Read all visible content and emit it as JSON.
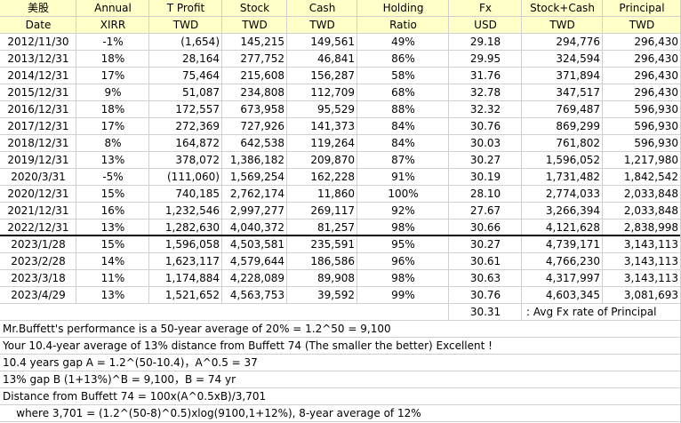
{
  "headers": {
    "row1": [
      "美股",
      "Annual",
      "T Profit",
      "Stock",
      "Cash",
      "Holding",
      "Fx",
      "Stock+Cash",
      "Principal"
    ],
    "row2": [
      "Date",
      "XIRR",
      "TWD",
      "TWD",
      "TWD",
      "Ratio",
      "USD",
      "TWD",
      "TWD"
    ]
  },
  "rows": [
    [
      "2012/11/30",
      "-1%",
      "(1,654)",
      "145,215",
      "149,561",
      "49%",
      "29.18",
      "294,776",
      "296,430"
    ],
    [
      "2013/12/31",
      "18%",
      "28,164",
      "277,752",
      "46,841",
      "86%",
      "29.95",
      "324,594",
      "296,430"
    ],
    [
      "2014/12/31",
      "17%",
      "75,464",
      "215,608",
      "156,287",
      "58%",
      "31.76",
      "371,894",
      "296,430"
    ],
    [
      "2015/12/31",
      "9%",
      "51,087",
      "234,808",
      "112,709",
      "68%",
      "32.78",
      "347,517",
      "296,430"
    ],
    [
      "2016/12/31",
      "18%",
      "172,557",
      "673,958",
      "95,529",
      "88%",
      "32.32",
      "769,487",
      "596,930"
    ],
    [
      "2017/12/31",
      "17%",
      "272,369",
      "727,926",
      "141,373",
      "84%",
      "30.76",
      "869,299",
      "596,930"
    ],
    [
      "2018/12/31",
      "8%",
      "164,872",
      "642,538",
      "119,264",
      "84%",
      "30.03",
      "761,802",
      "596,930"
    ],
    [
      "2019/12/31",
      "13%",
      "378,072",
      "1,386,182",
      "209,870",
      "87%",
      "30.27",
      "1,596,052",
      "1,217,980"
    ],
    [
      "2020/3/31",
      "-5%",
      "(111,060)",
      "1,569,254",
      "162,228",
      "91%",
      "30.19",
      "1,731,482",
      "1,842,542"
    ],
    [
      "2020/12/31",
      "15%",
      "740,185",
      "2,762,174",
      "11,860",
      "100%",
      "28.10",
      "2,774,033",
      "2,033,848"
    ],
    [
      "2021/12/31",
      "16%",
      "1,232,546",
      "2,997,277",
      "269,117",
      "92%",
      "27.67",
      "3,266,394",
      "2,033,848"
    ],
    [
      "2022/12/31",
      "13%",
      "1,282,630",
      "4,040,372",
      "81,257",
      "98%",
      "30.66",
      "4,121,628",
      "2,838,998"
    ],
    [
      "2023/1/28",
      "15%",
      "1,596,058",
      "4,503,581",
      "235,591",
      "95%",
      "30.27",
      "4,739,171",
      "3,143,113"
    ],
    [
      "2023/2/28",
      "14%",
      "1,623,117",
      "4,579,644",
      "186,586",
      "96%",
      "30.61",
      "4,766,230",
      "3,143,113"
    ],
    [
      "2023/3/18",
      "11%",
      "1,174,884",
      "4,228,089",
      "89,908",
      "98%",
      "30.63",
      "4,317,997",
      "3,143,113"
    ],
    [
      "2023/4/29",
      "13%",
      "1,521,652",
      "4,563,753",
      "39,592",
      "99%",
      "30.76",
      "4,603,345",
      "3,081,693"
    ]
  ],
  "avg_fx": {
    "value": "30.31",
    "label": ": Avg Fx rate of Principal"
  },
  "notes": [
    "Mr.Buffett's performance is a 50-year average of 20% = 1.2^50 = 9,100",
    "Your 10.4-year average of 13% distance from Buffett 74 (The smaller the better) Excellent !",
    "10.4 years gap A = 1.2^(50-10.4)，A^0.5 = 37",
    "13% gap B (1+13%)^B = 9,100，B = 74 yr",
    "Distance from Buffett 74 = 100x(A^0.5xB)/3,701",
    "    where 3,701 = (1.2^(50-8)^0.5)xlog(9100,1+12%), 8-year average of 12%"
  ],
  "colors": {
    "header_bg": "#ffffc8",
    "grid": "#d0d0d0",
    "separator": "#000000"
  }
}
